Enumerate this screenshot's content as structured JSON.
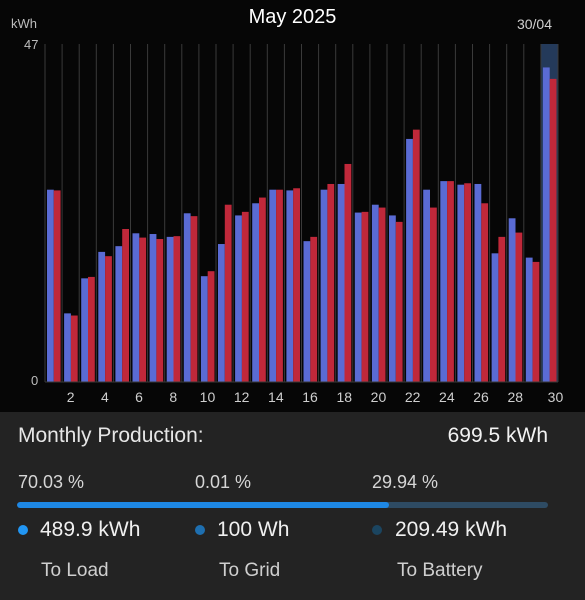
{
  "chart_data": {
    "type": "bar",
    "title": "May 2025",
    "unit_label": "kWh",
    "date_label": "30/04",
    "ylim": [
      0,
      47
    ],
    "ytick_labels": [
      "47",
      "0"
    ],
    "xtick_labels": [
      "2",
      "4",
      "6",
      "8",
      "10",
      "12",
      "14",
      "16",
      "18",
      "20",
      "22",
      "24",
      "26",
      "28",
      "30"
    ],
    "categories": [
      1,
      2,
      3,
      4,
      5,
      6,
      7,
      8,
      9,
      10,
      11,
      12,
      13,
      14,
      15,
      16,
      17,
      18,
      19,
      20,
      21,
      22,
      23,
      24,
      25,
      26,
      27,
      28,
      29,
      30
    ],
    "highlighted_day": 30,
    "colors": {
      "series_blue": "#5a6bd4",
      "series_red": "#c0283a",
      "highlight": "#243a5a"
    },
    "series": [
      {
        "values": [
          26.9,
          9.6,
          14.5,
          18.2,
          19.0,
          20.8,
          20.7,
          20.3,
          23.6,
          14.8,
          19.3,
          23.3,
          25.0,
          26.9,
          26.8,
          19.7,
          26.9,
          27.7,
          23.7,
          24.8,
          23.3,
          34.0,
          26.9,
          28.1,
          27.6,
          27.7,
          18.0,
          22.9,
          17.4,
          44.0
        ]
      },
      {
        "values": [
          26.8,
          9.3,
          14.7,
          17.6,
          21.4,
          20.2,
          20.0,
          20.4,
          23.2,
          15.5,
          24.8,
          23.8,
          25.8,
          26.9,
          27.1,
          20.3,
          27.7,
          30.5,
          23.8,
          24.4,
          22.4,
          35.3,
          24.4,
          28.1,
          27.8,
          25.0,
          20.3,
          20.9,
          16.8,
          42.4
        ]
      }
    ]
  },
  "summary": {
    "label": "Monthly Production:",
    "value": "699.5 kWh",
    "progress_fraction": 0.7003,
    "colors": {
      "load": "#2196f3",
      "grid": "#1e6fb0",
      "battery": "#1b4560",
      "track": "#2e4b63"
    },
    "load": {
      "percent": "70.03 %",
      "value": "489.9 kWh",
      "label": "To Load"
    },
    "grid": {
      "percent": "0.01 %",
      "value": "100 Wh",
      "label": "To Grid"
    },
    "battery": {
      "percent": "29.94 %",
      "value": "209.49 kWh",
      "label": "To Battery"
    }
  }
}
